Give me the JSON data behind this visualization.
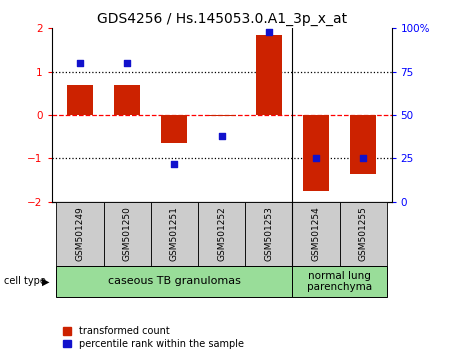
{
  "title": "GDS4256 / Hs.145053.0.A1_3p_x_at",
  "samples": [
    "GSM501249",
    "GSM501250",
    "GSM501251",
    "GSM501252",
    "GSM501253",
    "GSM501254",
    "GSM501255"
  ],
  "red_bars": [
    0.7,
    0.7,
    -0.65,
    -0.02,
    1.85,
    -1.75,
    -1.35
  ],
  "blue_dots_pct": [
    80,
    80,
    22,
    38,
    98,
    25,
    25
  ],
  "ylim": [
    -2,
    2
  ],
  "y2lim": [
    0,
    100
  ],
  "yticks_left": [
    -2,
    -1,
    0,
    1,
    2
  ],
  "yticks_right": [
    0,
    25,
    50,
    75,
    100
  ],
  "dotted_lines_black": [
    -1,
    1
  ],
  "dashed_line_red": 0,
  "bar_width": 0.55,
  "bar_color": "#cc2200",
  "dot_color": "#1111cc",
  "group1_count": 5,
  "group2_count": 2,
  "group1_label": "caseous TB granulomas",
  "group2_label": "normal lung\nparenchyma",
  "group_bg": "#99dd99",
  "sample_box_bg": "#cccccc",
  "cell_type_label": "cell type",
  "legend_red_label": "transformed count",
  "legend_blue_label": "percentile rank within the sample",
  "title_fontsize": 10,
  "tick_fontsize": 7.5,
  "sample_fontsize": 6.5,
  "group_fontsize": 8,
  "legend_fontsize": 7
}
